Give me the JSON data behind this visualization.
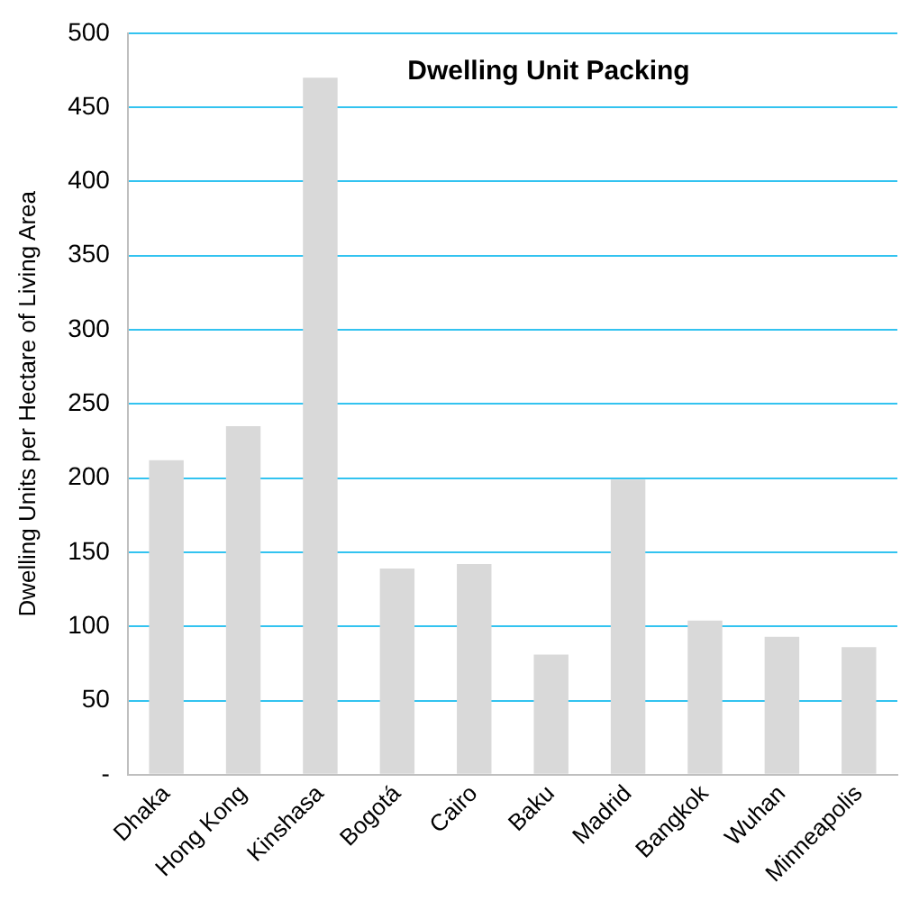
{
  "chart_data": {
    "type": "bar",
    "title": "Dwelling Unit Packing",
    "ylabel": "Dwelling Units per Hectare of Living Area",
    "categories": [
      "Dhaka",
      "Hong Kong",
      "Kinshasa",
      "Bogotá",
      "Cairo",
      "Baku",
      "Madrid",
      "Bangkok",
      "Wuhan",
      "Minneapolis"
    ],
    "values": [
      212,
      235,
      470,
      139,
      142,
      81,
      199,
      104,
      93,
      86
    ],
    "color": "#d9d9d9",
    "ylim": [
      0,
      500
    ],
    "yticks": [
      {
        "value": 0,
        "label": "-"
      },
      50,
      100,
      150,
      200,
      250,
      300,
      350,
      400,
      450,
      500
    ],
    "grid": "y",
    "legend": false
  }
}
